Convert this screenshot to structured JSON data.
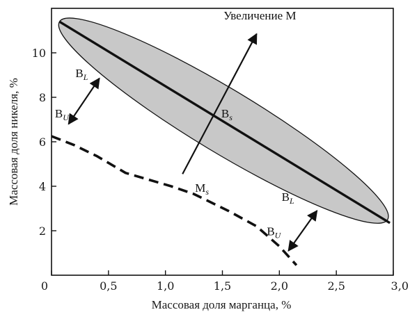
{
  "chart_data": {
    "type": "line",
    "xlabel": "Массовая доля марганца,  %",
    "ylabel": "Массовая доля никеля,  %",
    "xlim": [
      0,
      3.0
    ],
    "ylim": [
      0,
      12
    ],
    "x_ticks": [
      {
        "value": 0,
        "label": "0"
      },
      {
        "value": 0.5,
        "label": "0,5"
      },
      {
        "value": 1.0,
        "label": "1,0"
      },
      {
        "value": 1.5,
        "label": "1,5"
      },
      {
        "value": 2.0,
        "label": "2,0"
      },
      {
        "value": 2.5,
        "label": "2,5"
      },
      {
        "value": 3.0,
        "label": "3,0"
      }
    ],
    "y_ticks": [
      {
        "value": 2,
        "label": "2"
      },
      {
        "value": 4,
        "label": "4"
      },
      {
        "value": 6,
        "label": "6"
      },
      {
        "value": 8,
        "label": "8"
      },
      {
        "value": 10,
        "label": "10"
      }
    ],
    "grid": false,
    "region": {
      "type": "ellipse-band",
      "from": {
        "x": 0.07,
        "y": 11.4
      },
      "to": {
        "x": 2.95,
        "y": 2.5
      },
      "half_width": 0.75,
      "fill": "#c8c8c8",
      "stroke": "#111111"
    },
    "series": [
      {
        "style": "solid",
        "color": "#111111",
        "points": [
          {
            "x": 0.07,
            "y": 11.4
          },
          {
            "x": 2.97,
            "y": 2.35
          }
        ]
      },
      {
        "style": "dashed",
        "color": "#111111",
        "points": [
          {
            "x": 0.0,
            "y": 6.25
          },
          {
            "x": 0.2,
            "y": 5.85
          },
          {
            "x": 0.4,
            "y": 5.35
          },
          {
            "x": 0.65,
            "y": 4.6
          },
          {
            "x": 0.85,
            "y": 4.3
          },
          {
            "x": 1.05,
            "y": 4.0
          },
          {
            "x": 1.25,
            "y": 3.65
          },
          {
            "x": 1.55,
            "y": 2.9
          },
          {
            "x": 1.8,
            "y": 2.2
          },
          {
            "x": 2.0,
            "y": 1.3
          },
          {
            "x": 2.15,
            "y": 0.45
          }
        ]
      }
    ],
    "annotations": [
      {
        "name": "uvelichenie",
        "main": "Увеличение М",
        "sub": "",
        "x": 1.51,
        "y": 11.5
      },
      {
        "name": "bs",
        "main": "B",
        "sub": "s",
        "x": 1.49,
        "y": 7.1
      },
      {
        "name": "ms",
        "main": "M",
        "sub": "s",
        "x": 1.26,
        "y": 3.75
      },
      {
        "name": "bl-top",
        "main": "B",
        "sub": "L",
        "x": 0.21,
        "y": 8.9
      },
      {
        "name": "bu-top",
        "main": "B",
        "sub": "U",
        "x": 0.03,
        "y": 7.1
      },
      {
        "name": "bl-bottom",
        "main": "B",
        "sub": "L",
        "x": 2.02,
        "y": 3.35
      },
      {
        "name": "bu-bottom",
        "main": "B",
        "sub": "U",
        "x": 1.89,
        "y": 1.8
      }
    ],
    "arrows": [
      {
        "name": "uvelichenie-arrow",
        "from": {
          "x": 1.15,
          "y": 4.55
        },
        "to": {
          "x": 1.8,
          "y": 10.85
        },
        "heads": "end"
      },
      {
        "name": "b-arrow-top",
        "from": {
          "x": 0.15,
          "y": 6.8
        },
        "to": {
          "x": 0.42,
          "y": 8.85
        },
        "heads": "both"
      },
      {
        "name": "b-arrow-bottom",
        "from": {
          "x": 2.08,
          "y": 1.1
        },
        "to": {
          "x": 2.33,
          "y": 2.9
        },
        "heads": "both"
      }
    ]
  }
}
